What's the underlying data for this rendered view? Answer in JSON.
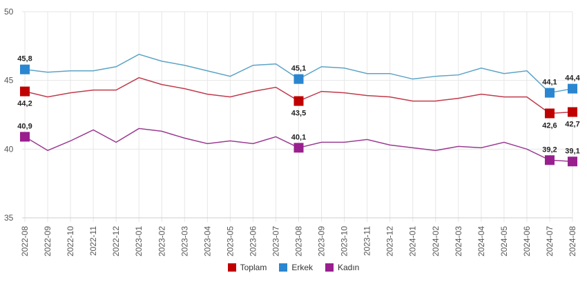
{
  "chart_data": {
    "type": "line",
    "categories": [
      "2022-08",
      "2022-09",
      "2022-10",
      "2022-11",
      "2022-12",
      "2023-01",
      "2023-02",
      "2023-03",
      "2023-04",
      "2023-05",
      "2023-06",
      "2023-07",
      "2023-08",
      "2023-09",
      "2023-10",
      "2023-11",
      "2023-12",
      "2024-01",
      "2024-02",
      "2024-03",
      "2024-04",
      "2024-05",
      "2024-06",
      "2024-07",
      "2024-08"
    ],
    "ylim": [
      35,
      50
    ],
    "yticks": [
      35,
      40,
      45,
      50
    ],
    "grid": true,
    "legend_placement": "bottom",
    "labeled_indices": [
      0,
      12,
      23,
      24
    ],
    "series": [
      {
        "name": "Toplam",
        "color": "#c00000",
        "line_color": "#c0394a",
        "values": [
          44.2,
          43.8,
          44.1,
          44.3,
          44.3,
          45.2,
          44.7,
          44.4,
          44.0,
          43.8,
          44.2,
          44.5,
          43.5,
          44.2,
          44.1,
          43.9,
          43.8,
          43.5,
          43.5,
          43.7,
          44.0,
          43.8,
          43.8,
          42.6,
          42.7
        ],
        "labels_below": true
      },
      {
        "name": "Erkek",
        "color": "#2a86d0",
        "line_color": "#5aa3c6",
        "values": [
          45.8,
          45.6,
          45.7,
          45.7,
          46.0,
          46.9,
          46.4,
          46.1,
          45.7,
          45.3,
          46.1,
          46.2,
          45.1,
          46.0,
          45.9,
          45.5,
          45.5,
          45.1,
          45.3,
          45.4,
          45.9,
          45.5,
          45.7,
          44.1,
          44.4
        ],
        "labels_below": false
      },
      {
        "name": "Kadın",
        "color": "#991f8f",
        "line_color": "#9a3a92",
        "values": [
          40.9,
          39.9,
          40.6,
          41.4,
          40.5,
          41.5,
          41.3,
          40.8,
          40.4,
          40.6,
          40.4,
          40.9,
          40.1,
          40.5,
          40.5,
          40.7,
          40.3,
          40.1,
          39.9,
          40.2,
          40.1,
          40.5,
          40.0,
          39.2,
          39.1
        ],
        "labels_below": false
      }
    ]
  }
}
